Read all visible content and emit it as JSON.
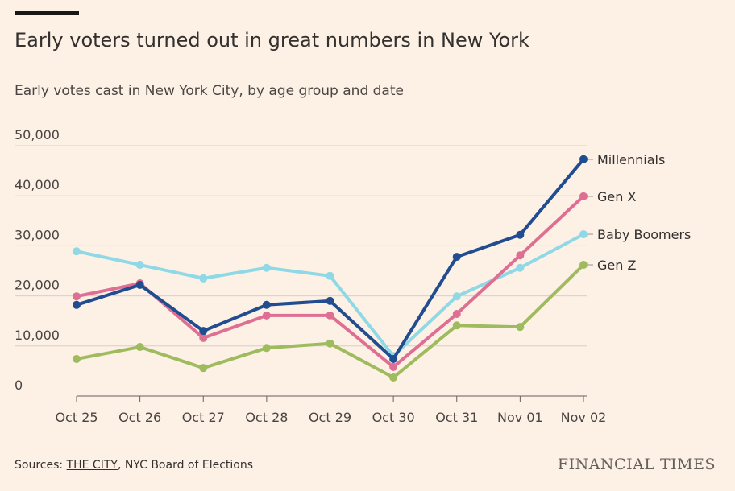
{
  "title": "Early voters turned out in great numbers in New York",
  "subtitle": "Early votes cast in New York City, by age group and date",
  "source": {
    "prefix": "Sources: ",
    "link": "THE CITY",
    "rest": ", NYC Board of Elections"
  },
  "logo": "FINANCIAL TIMES",
  "chart_data": {
    "type": "line",
    "title": "Early voters turned out in great numbers in New York",
    "subtitle": "Early votes cast in New York City, by age group and date",
    "categories": [
      "Oct 25",
      "Oct 26",
      "Oct 27",
      "Oct 28",
      "Oct 29",
      "Oct 30",
      "Oct 31",
      "Nov 01",
      "Nov 02"
    ],
    "ylim": [
      0,
      50000
    ],
    "yticks": [
      0,
      10000,
      20000,
      30000,
      40000,
      50000
    ],
    "ytick_labels": [
      "0",
      "10,000",
      "20,000",
      "30,000",
      "40,000",
      "50,000"
    ],
    "grid": true,
    "legend": "direct labels at right end",
    "series": [
      {
        "name": "Gen Z",
        "color": "#9ebb5e",
        "values": [
          7400,
          9800,
          5600,
          9600,
          10500,
          3700,
          14100,
          13800,
          26200
        ]
      },
      {
        "name": "Baby Boomers",
        "color": "#8fd8e6",
        "values": [
          28900,
          26200,
          23500,
          25600,
          24000,
          8000,
          19900,
          25600,
          32300
        ]
      },
      {
        "name": "Gen X",
        "color": "#de6f93",
        "values": [
          19900,
          22500,
          11600,
          16100,
          16100,
          5800,
          16400,
          28100,
          39900
        ]
      },
      {
        "name": "Millennials",
        "color": "#214c8f",
        "values": [
          18200,
          22200,
          13000,
          18200,
          19000,
          7400,
          27800,
          32200,
          47300
        ]
      }
    ]
  }
}
